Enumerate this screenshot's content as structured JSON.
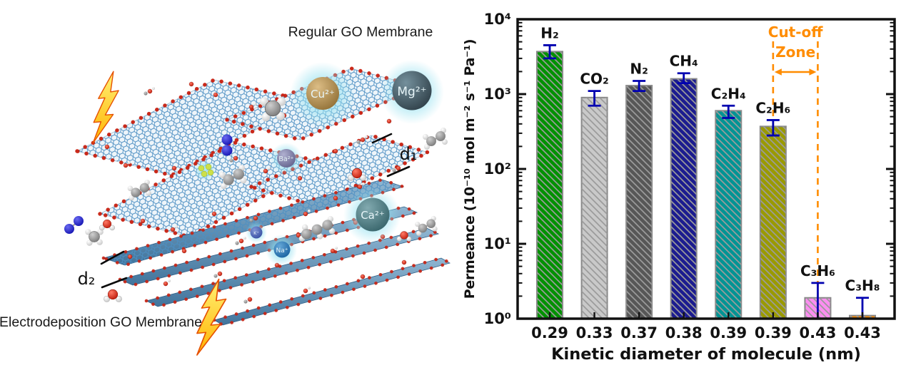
{
  "figure": {
    "left_panel": {
      "title_top": "Regular GO Membrane",
      "title_bottom": "Electrodeposition GO Membrane",
      "spacing_labels": {
        "d1": "d₁",
        "d2": "d₂"
      },
      "ions": [
        {
          "label": "Cu²⁺"
        },
        {
          "label": "Mg²⁺"
        },
        {
          "label": "Ba²⁺"
        },
        {
          "label": "Ca²⁺"
        },
        {
          "label": "K⁺"
        },
        {
          "label": "Na⁺"
        }
      ]
    }
  },
  "chart_data": {
    "type": "bar",
    "title": "",
    "xlabel": "Kinetic diameter of molecule (nm)",
    "ylabel": "Permeance (10⁻¹⁰ mol m⁻² s⁻¹ Pa⁻¹)",
    "y_scale": "log",
    "ylim": [
      1,
      10000
    ],
    "y_ticks": [
      "10⁰",
      "10¹",
      "10²",
      "10³",
      "10⁴"
    ],
    "categories": [
      "0.29",
      "0.33",
      "0.37",
      "0.38",
      "0.39",
      "0.39",
      "0.43",
      "0.43"
    ],
    "series_labels": [
      "H₂",
      "CO₂",
      "N₂",
      "CH₄",
      "C₂H₄",
      "C₂H₆",
      "C₃H₆",
      "C₃H₈"
    ],
    "values": [
      3700,
      900,
      1300,
      1600,
      600,
      370,
      1.9,
      1.1
    ],
    "error_low": [
      3000,
      700,
      1100,
      1400,
      480,
      280,
      1.0,
      1.0
    ],
    "error_high": [
      4500,
      1100,
      1500,
      1900,
      700,
      450,
      3.0,
      1.9
    ],
    "bar_colors": [
      "#009100",
      "#c9c9c9",
      "#575757",
      "#1c1c8f",
      "#009494",
      "#9a9a00",
      "#fb8ef0",
      "#ff8c00"
    ],
    "bar_edge_color": "#888888",
    "hatch": "diagonal-backslash",
    "hatch_color": "#9b9b9b",
    "error_bar_color": "#0000b0",
    "grid": false,
    "legend": false,
    "annotation": {
      "text_lines": [
        "Cut-off",
        "Zone"
      ],
      "color": "#ff8c00",
      "from_index": 5,
      "to_index": 6
    }
  }
}
